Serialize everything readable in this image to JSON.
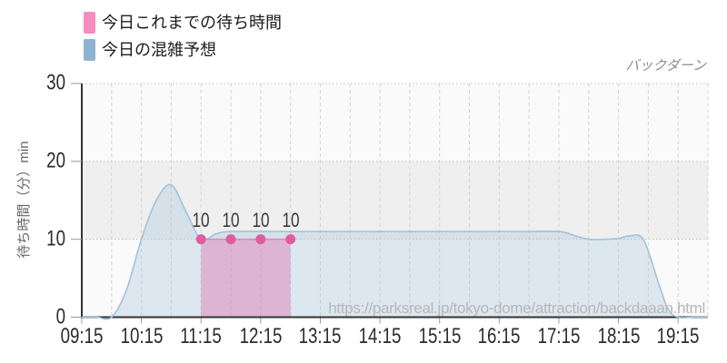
{
  "legend": {
    "items": [
      {
        "label": "今日これまでの待ち時間",
        "color": "#f78cc0"
      },
      {
        "label": "今日の混雑予想",
        "color": "#8fb3cf"
      }
    ]
  },
  "annotation": {
    "text": "バックダーン"
  },
  "watermark": {
    "text": "https://parksreal.jp/tokyo-dome/attraction/backdaaan.html"
  },
  "chart_data": {
    "type": "area",
    "title": "",
    "xlabel": "",
    "ylabel": "待ち時間（分）min",
    "ylim": [
      0,
      30
    ],
    "x_range": [
      "09:15",
      "19:45"
    ],
    "y_ticks": [
      "30",
      "20",
      "10",
      "0"
    ],
    "x_ticks": [
      "09:15",
      "10:15",
      "11:15",
      "12:15",
      "13:15",
      "14:15",
      "15:15",
      "16:15",
      "17:15",
      "18:15",
      "19:15"
    ],
    "grid": {
      "vertical_interval_minutes": 30,
      "horizontal_band": {
        "from": 10,
        "to": 20,
        "color": "#efefef"
      }
    },
    "colors": {
      "plot_bg": "#fafafa",
      "axis": "#333333",
      "grid_vertical": "#d4d4d4",
      "grid_horizontal": "#bfbfbf",
      "tick_mark": "#999999"
    },
    "series": [
      {
        "name": "今日これまでの待ち時間",
        "type": "area",
        "line_color": "#e05c9f",
        "marker_color": "#e05c9f",
        "fill_color": "rgba(223,100,165,0.38)",
        "markers": true,
        "points": [
          {
            "time": "11:15",
            "value": 10
          },
          {
            "time": "11:45",
            "value": 10
          },
          {
            "time": "12:15",
            "value": 10
          },
          {
            "time": "12:45",
            "value": 10
          }
        ],
        "point_labels": [
          "10",
          "10",
          "10",
          "10"
        ]
      },
      {
        "name": "今日の混雑予想",
        "type": "area",
        "line_color": "#a3c2d9",
        "fill_color": "rgba(170,199,221,0.38)",
        "markers": false,
        "points": [
          {
            "time": "09:15",
            "value": 0
          },
          {
            "time": "09:30",
            "value": 0
          },
          {
            "time": "09:45",
            "value": 0
          },
          {
            "time": "10:00",
            "value": 3.5
          },
          {
            "time": "10:15",
            "value": 10
          },
          {
            "time": "10:30",
            "value": 15
          },
          {
            "time": "10:45",
            "value": 17
          },
          {
            "time": "11:00",
            "value": 13.5
          },
          {
            "time": "11:15",
            "value": 10
          },
          {
            "time": "11:30",
            "value": 10.7
          },
          {
            "time": "11:45",
            "value": 11
          },
          {
            "time": "12:30",
            "value": 11
          },
          {
            "time": "13:30",
            "value": 11
          },
          {
            "time": "14:30",
            "value": 11
          },
          {
            "time": "15:30",
            "value": 11
          },
          {
            "time": "16:30",
            "value": 11
          },
          {
            "time": "17:15",
            "value": 11
          },
          {
            "time": "17:30",
            "value": 10.5
          },
          {
            "time": "17:45",
            "value": 10
          },
          {
            "time": "18:00",
            "value": 10
          },
          {
            "time": "18:15",
            "value": 10.1
          },
          {
            "time": "18:25",
            "value": 10.4
          },
          {
            "time": "18:40",
            "value": 10
          },
          {
            "time": "18:55",
            "value": 4.5
          },
          {
            "time": "19:05",
            "value": 1
          },
          {
            "time": "19:15",
            "value": 0
          },
          {
            "time": "19:30",
            "value": 0
          },
          {
            "time": "19:45",
            "value": 0
          }
        ]
      }
    ]
  }
}
